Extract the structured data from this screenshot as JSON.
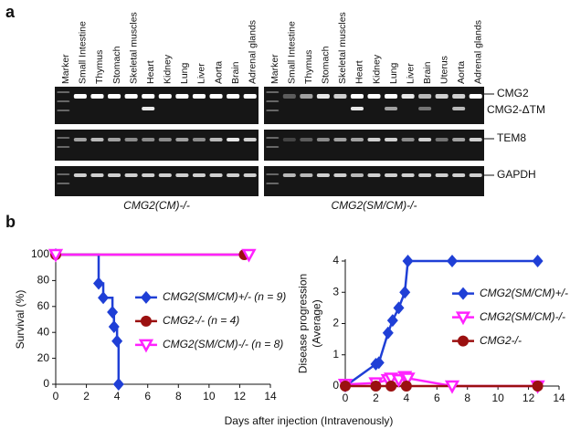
{
  "panels": {
    "a": "a",
    "b": "b"
  },
  "gels": [
    {
      "genotype": "CMG2(CM)-/-",
      "lanes": [
        "Marker",
        "Small Intestine",
        "Thymus",
        "Stomach",
        "Skeletal muscles",
        "Heart",
        "Kidney",
        "Lung",
        "Liver",
        "Aorta",
        "Brain",
        "Adrenal glands"
      ]
    },
    {
      "genotype": "CMG2(SM/CM)-/-",
      "lanes": [
        "Marker",
        "Small Intestine",
        "Thymus",
        "Stomach",
        "Skeletal muscles",
        "Heart",
        "Kidney",
        "Lung",
        "Liver",
        "Brain",
        "Uterus",
        "Aorta",
        "Adrenal glands"
      ]
    }
  ],
  "band_labels": [
    "CMG2",
    "CMG2-ΔTM",
    "TEM8",
    "GAPDH"
  ],
  "shared_xlabel": "Days after injection (Intravenously)",
  "chart_data": [
    {
      "type": "line",
      "step": true,
      "ylabel": [
        "Survival (%)"
      ],
      "xlim": [
        0,
        14
      ],
      "xticks": [
        0,
        2,
        4,
        6,
        8,
        10,
        12,
        14
      ],
      "ylim": [
        0,
        100
      ],
      "yticks": [
        0,
        20,
        40,
        60,
        80,
        100
      ],
      "legend": "center",
      "series": [
        {
          "name": "CMG2(SM/CM)+/- (n = 9)",
          "color": "#1f3fd6",
          "marker": "diamond",
          "x": [
            0,
            2.8,
            3.1,
            3.7,
            3.8,
            4.0,
            4.1
          ],
          "values": [
            100,
            77.8,
            66.7,
            55.6,
            44.4,
            33.3,
            0
          ]
        },
        {
          "name": "CMG2-/- (n = 4)",
          "color": "#9b1010",
          "marker": "circle",
          "x": [
            0,
            12.3
          ],
          "values": [
            100,
            100
          ]
        },
        {
          "name": "CMG2(SM/CM)-/- (n = 8)",
          "color": "#ff22ff",
          "marker": "triangle",
          "x": [
            0,
            12.6
          ],
          "values": [
            100,
            100
          ]
        }
      ]
    },
    {
      "type": "line",
      "step": false,
      "ylabel": [
        "Disease progression",
        "(Average)"
      ],
      "xlim": [
        0,
        14
      ],
      "xticks": [
        0,
        2,
        4,
        6,
        8,
        10,
        12,
        14
      ],
      "ylim": [
        0,
        4
      ],
      "yticks": [
        0,
        1,
        2,
        3,
        4
      ],
      "legend": "center-right",
      "series": [
        {
          "name": "CMG2(SM/CM)+/-",
          "color": "#1f3fd6",
          "marker": "diamond",
          "x": [
            0,
            2,
            2.2,
            2.8,
            3.1,
            3.5,
            3.9,
            4.1,
            7,
            12.6
          ],
          "values": [
            0,
            0.7,
            0.75,
            1.7,
            2.1,
            2.5,
            3,
            4,
            4,
            4
          ]
        },
        {
          "name": "CMG2(SM/CM)-/-",
          "color": "#ff22ff",
          "marker": "triangle",
          "x": [
            0,
            2,
            2.8,
            3,
            3.5,
            3.9,
            4.1,
            7,
            12.6
          ],
          "values": [
            0.05,
            0.1,
            0.2,
            0.25,
            0.2,
            0.3,
            0.25,
            0,
            0
          ]
        },
        {
          "name": "CMG2-/-",
          "color": "#9b1010",
          "marker": "circle",
          "x": [
            0,
            2,
            3,
            4,
            12.6
          ],
          "values": [
            0,
            0,
            0,
            0,
            0
          ]
        }
      ]
    }
  ]
}
